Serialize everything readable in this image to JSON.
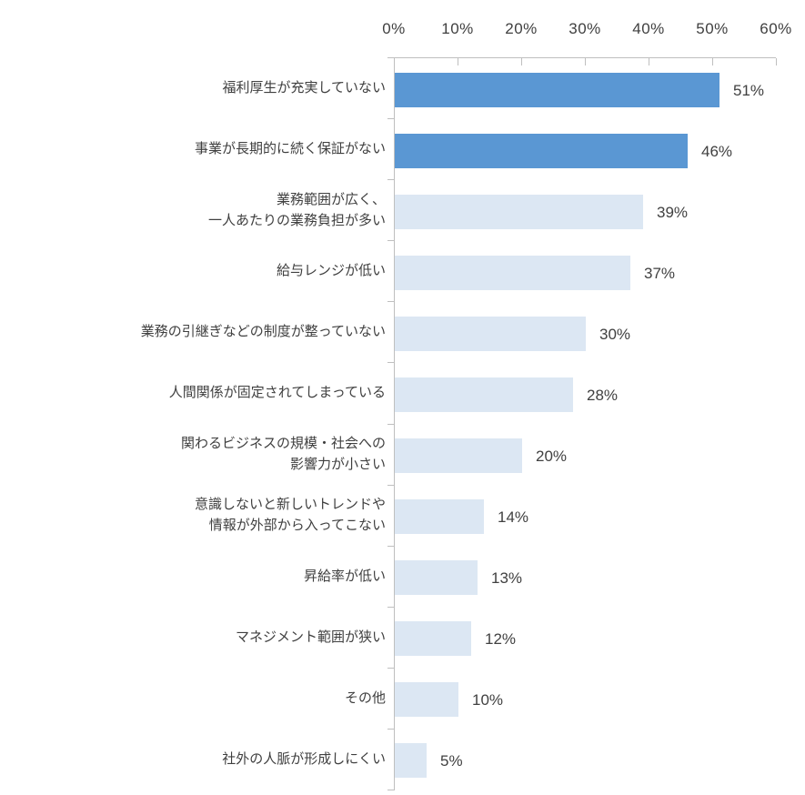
{
  "chart_data": {
    "type": "bar",
    "orientation": "horizontal",
    "title": "",
    "xlabel": "",
    "ylabel": "",
    "categories": [
      "福利厚生が充実していない",
      "事業が長期的に続く保証がない",
      "業務範囲が広く、\n一人あたりの業務負担が多い",
      "給与レンジが低い",
      "業務の引継ぎなどの制度が整っていない",
      "人間関係が固定されてしまっている",
      "関わるビジネスの規模・社会への\n影響力が小さい",
      "意識しないと新しいトレンドや\n情報が外部から入ってこない",
      "昇給率が低い",
      "マネジメント範囲が狭い",
      "その他",
      "社外の人脈が形成しにくい"
    ],
    "values": [
      51,
      46,
      39,
      37,
      30,
      28,
      20,
      14,
      13,
      12,
      10,
      5
    ],
    "value_labels": [
      "51%",
      "46%",
      "39%",
      "37%",
      "30%",
      "28%",
      "20%",
      "14%",
      "13%",
      "12%",
      "10%",
      "5%"
    ],
    "x_ticks": [
      "0%",
      "10%",
      "20%",
      "30%",
      "40%",
      "50%",
      "60%"
    ],
    "xlim": [
      0,
      60
    ],
    "grid": "off",
    "legend": "none",
    "highlight_count": 2,
    "colors": {
      "bar_highlight": "#5A97D3",
      "bar_normal": "#DCE7F3",
      "axis": "#BFBFBF",
      "category_text": "#3F3F3F",
      "value_text": "#404040"
    }
  }
}
